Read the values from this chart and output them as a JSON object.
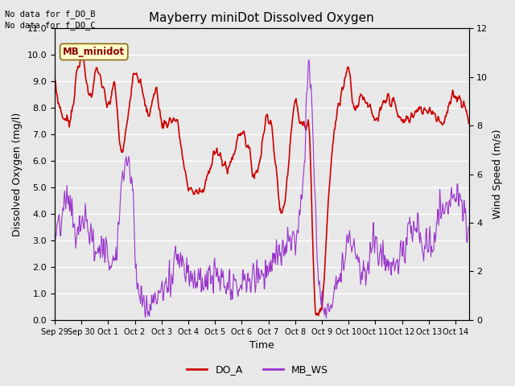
{
  "title": "Mayberry miniDot Dissolved Oxygen",
  "xlabel": "Time",
  "ylabel_left": "Dissolved Oxygen (mg/l)",
  "ylabel_right": "Wind Speed (m/s)",
  "annotation1": "No data for f_DO_B",
  "annotation2": "No data for f_DO_C",
  "box_label": "MB_minidot",
  "legend_do": "DO_A",
  "legend_ws": "MB_WS",
  "do_color": "#cc0000",
  "ws_color": "#9933cc",
  "ylim_left": [
    0.0,
    11.0
  ],
  "ylim_right": [
    0,
    12
  ],
  "yticks_left": [
    0.0,
    1.0,
    2.0,
    3.0,
    4.0,
    5.0,
    6.0,
    7.0,
    8.0,
    9.0,
    10.0,
    11.0
  ],
  "yticks_right": [
    0,
    2,
    4,
    6,
    8,
    10,
    12
  ],
  "bg_color": "#e8e8e8",
  "grid_color": "#ffffff",
  "fig_bg": "#e8e8e8",
  "tick_labels": [
    "Sep 29",
    "Sep 30",
    "Oct 1",
    "Oct 2",
    "Oct 3",
    "Oct 4",
    "Oct 5",
    "Oct 6",
    "Oct 7",
    "Oct 8",
    "Oct 9",
    "Oct 10",
    "Oct 11",
    "Oct 12",
    "Oct 13",
    "Oct 14"
  ],
  "figsize": [
    6.4,
    4.8
  ],
  "dpi": 100
}
